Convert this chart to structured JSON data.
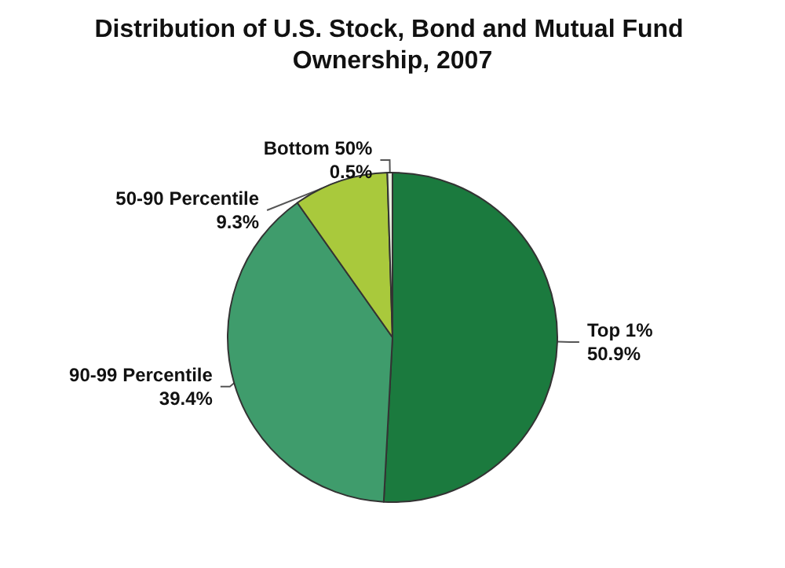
{
  "chart_data": {
    "type": "pie",
    "title": "Distribution of U.S. Stock, Bond and Mutual Fund Ownership, 2007",
    "categories": [
      "Top 1%",
      "90-99 Percentile",
      "50-90 Percentile",
      "Bottom 50%"
    ],
    "values": [
      50.9,
      39.4,
      9.3,
      0.5
    ],
    "value_labels": [
      "50.9%",
      "39.4%",
      "9.3%",
      "0.5%"
    ],
    "colors": [
      "#1b7a3e",
      "#3f9c6c",
      "#a9c93c",
      "#e8efe0"
    ]
  }
}
